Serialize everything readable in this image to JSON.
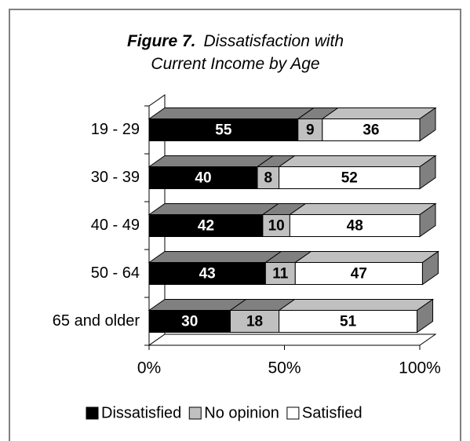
{
  "chart_data": {
    "type": "bar3d_stacked_horizontal",
    "title_label": "Figure 7.",
    "title": "Dissatisfaction with Current Income by Age",
    "categories": [
      "19 - 29",
      "30 - 39",
      "40 - 49",
      "50 - 64",
      "65 and older"
    ],
    "series": [
      {
        "name": "Dissatisfied",
        "color": "#000000",
        "top_color": "#808080",
        "label_color": "#ffffff",
        "values": [
          55,
          40,
          42,
          43,
          30
        ]
      },
      {
        "name": "No opinion",
        "color": "#c0c0c0",
        "top_color": "#808080",
        "label_color": "#000000",
        "values": [
          9,
          8,
          10,
          11,
          18
        ]
      },
      {
        "name": "Satisfied",
        "color": "#ffffff",
        "top_color": "#c0c0c0",
        "label_color": "#000000",
        "values": [
          36,
          52,
          48,
          47,
          51
        ]
      }
    ],
    "xlim": [
      0,
      100
    ],
    "xticks": [
      {
        "value": 0,
        "label": "0%"
      },
      {
        "value": 50,
        "label": "50%"
      },
      {
        "value": 100,
        "label": "100%"
      }
    ],
    "legend": "bottom"
  }
}
